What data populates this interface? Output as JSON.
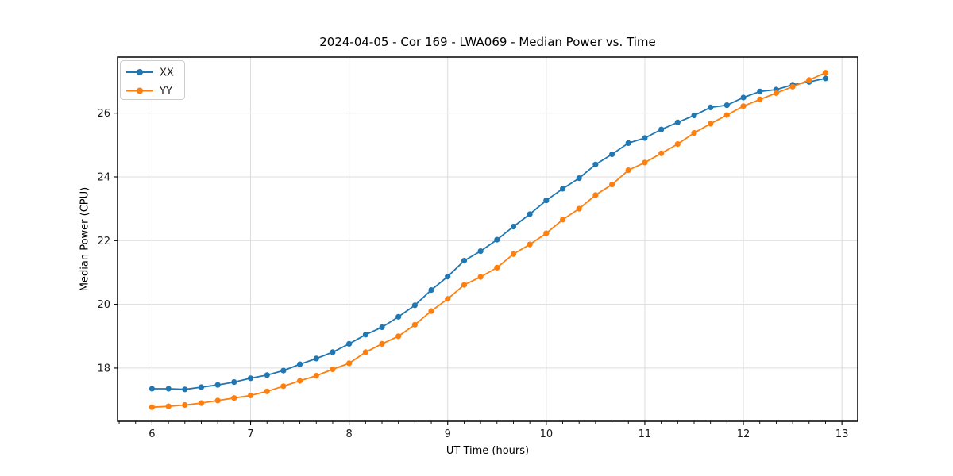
{
  "chart_data": {
    "type": "line",
    "title": "2024-04-05 - Cor 169 - LWA069 - Median Power vs. Time",
    "xlabel": "UT Time (hours)",
    "ylabel": "Median Power (CPU)",
    "xlim": [
      5.65,
      13.16
    ],
    "ylim": [
      16.33,
      27.76
    ],
    "xticks": [
      6,
      7,
      8,
      9,
      10,
      11,
      12,
      13
    ],
    "yticks": [
      18,
      20,
      22,
      24,
      26
    ],
    "x_minor_step_hours": 0.1667,
    "grid": true,
    "legend_position": "upper-left",
    "marker": "circle",
    "x": [
      6.0,
      6.167,
      6.333,
      6.5,
      6.667,
      6.833,
      7.0,
      7.167,
      7.333,
      7.5,
      7.667,
      7.833,
      8.0,
      8.167,
      8.333,
      8.5,
      8.667,
      8.833,
      9.0,
      9.167,
      9.333,
      9.5,
      9.667,
      9.833,
      10.0,
      10.167,
      10.333,
      10.5,
      10.667,
      10.833,
      11.0,
      11.167,
      11.333,
      11.5,
      11.667,
      11.833,
      12.0,
      12.167,
      12.333,
      12.5,
      12.667,
      12.833
    ],
    "series": [
      {
        "name": "XX",
        "color": "#1f77b4",
        "values": [
          17.35,
          17.35,
          17.33,
          17.4,
          17.47,
          17.56,
          17.68,
          17.78,
          17.92,
          18.12,
          18.3,
          18.5,
          18.76,
          19.05,
          19.28,
          19.61,
          19.97,
          20.45,
          20.87,
          21.37,
          21.67,
          22.03,
          22.44,
          22.83,
          23.26,
          23.63,
          23.96,
          24.39,
          24.71,
          25.06,
          25.22,
          25.49,
          25.71,
          25.93,
          26.18,
          26.25,
          26.49,
          26.68,
          26.74,
          26.89,
          26.98,
          27.09
        ]
      },
      {
        "name": "YY",
        "color": "#ff7f0e",
        "values": [
          16.77,
          16.8,
          16.84,
          16.9,
          16.98,
          17.06,
          17.14,
          17.27,
          17.43,
          17.6,
          17.76,
          17.96,
          18.15,
          18.5,
          18.76,
          19.0,
          19.36,
          19.79,
          20.17,
          20.61,
          20.86,
          21.15,
          21.58,
          21.88,
          22.23,
          22.66,
          23.0,
          23.43,
          23.76,
          24.21,
          24.45,
          24.74,
          25.03,
          25.38,
          25.67,
          25.94,
          26.22,
          26.43,
          26.63,
          26.83,
          27.04,
          27.27
        ]
      }
    ]
  },
  "style": {
    "grid_color": "#dcdcdc",
    "spine_color": "#000000",
    "legend_border": "#cccccc",
    "background": "#ffffff"
  }
}
